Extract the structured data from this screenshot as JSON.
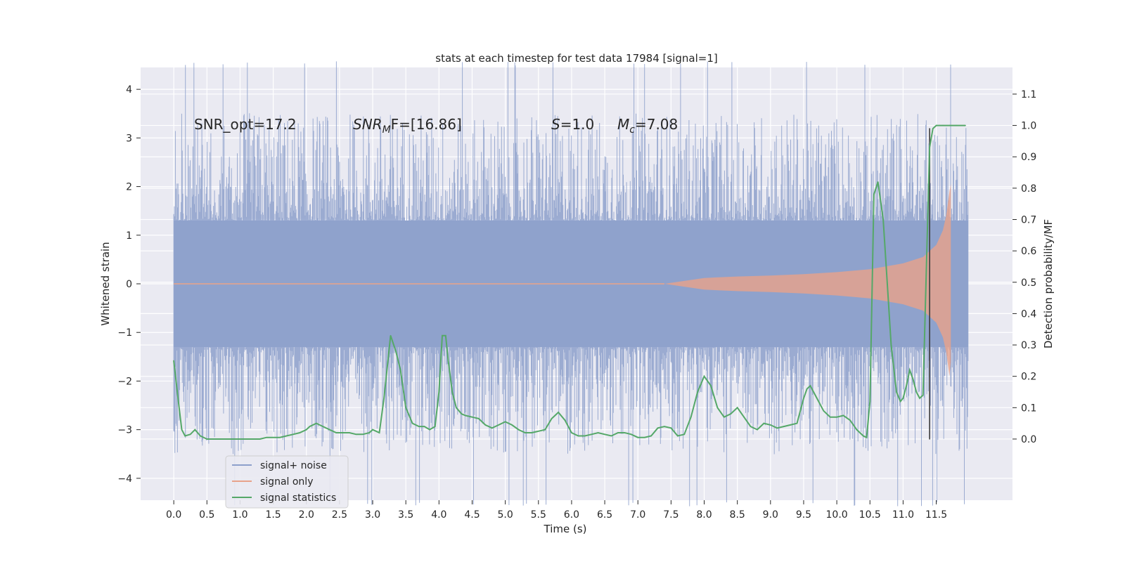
{
  "chart_data": {
    "type": "line",
    "title": "stats at each timestep for test data 17984 [signal=1]",
    "xlabel": "Time (s)",
    "ylabel_left": "Whitened strain",
    "ylabel_right": "Detection probability/MF",
    "xlim": [
      -0.5,
      12.65
    ],
    "ylim_left": [
      -4.45,
      4.45
    ],
    "ylim_right": [
      -0.195,
      1.185
    ],
    "x_ticks": [
      "0.0",
      "0.5",
      "1.0",
      "1.5",
      "2.0",
      "2.5",
      "3.0",
      "3.5",
      "4.0",
      "4.5",
      "5.0",
      "5.5",
      "6.0",
      "6.5",
      "7.0",
      "7.5",
      "8.0",
      "8.5",
      "9.0",
      "9.5",
      "10.0",
      "10.5",
      "11.0",
      "11.5"
    ],
    "y_ticks_left": [
      "4",
      "3",
      "2",
      "1",
      "0",
      "−1",
      "−2",
      "−3",
      "−4"
    ],
    "y_ticks_right": [
      "1.1",
      "1.0",
      "0.9",
      "0.8",
      "0.7",
      "0.6",
      "0.5",
      "0.4",
      "0.3",
      "0.2",
      "0.1",
      "0.0"
    ],
    "grid": true,
    "annotations": {
      "snr_opt": "SNR_opt=17.2",
      "snr_mf_sym": "SNR",
      "snr_mf_sub": "M",
      "snr_mf_rest": "F=[16.86]",
      "s_sym": "S",
      "s_rest": "=1.0",
      "mc_sym": "M",
      "mc_sub": "c",
      "mc_rest": "=7.08"
    },
    "marker_line_x": 11.4,
    "legend": {
      "location": "lower-left",
      "entries": [
        {
          "label": "signal+ noise",
          "color": "#8da0cb"
        },
        {
          "label": "signal only",
          "color": "#e8a38a"
        },
        {
          "label": "signal statistics",
          "color": "#55a868"
        }
      ]
    },
    "series": [
      {
        "name": "signal+ noise",
        "axis": "left",
        "description": "whitened strain data, approx. uniform noise amplitude ±1.3 with spikes to ±4",
        "band_core": [
          -1.3,
          1.3
        ],
        "peak_range": [
          -4.1,
          4.1
        ],
        "x_range": [
          0.0,
          11.98
        ]
      },
      {
        "name": "signal only",
        "axis": "left",
        "description": "chirp envelope",
        "x": [
          7.4,
          8.0,
          8.5,
          9.0,
          9.5,
          10.0,
          10.5,
          11.0,
          11.3,
          11.5,
          11.6,
          11.65,
          11.7,
          11.72
        ],
        "envelope": [
          0.0,
          0.12,
          0.15,
          0.17,
          0.2,
          0.24,
          0.3,
          0.42,
          0.55,
          0.8,
          1.1,
          1.4,
          1.9,
          2.05
        ]
      },
      {
        "name": "signal statistics",
        "axis": "right",
        "x": [
          0.0,
          0.07,
          0.12,
          0.17,
          0.25,
          0.32,
          0.4,
          0.5,
          0.6,
          0.7,
          0.8,
          0.9,
          1.0,
          1.1,
          1.2,
          1.3,
          1.4,
          1.5,
          1.6,
          1.7,
          1.8,
          1.9,
          2.0,
          2.05,
          2.15,
          2.25,
          2.35,
          2.45,
          2.55,
          2.65,
          2.75,
          2.85,
          2.95,
          3.0,
          3.1,
          3.17,
          3.27,
          3.35,
          3.42,
          3.5,
          3.6,
          3.7,
          3.78,
          3.86,
          3.94,
          4.0,
          4.05,
          4.1,
          4.14,
          4.2,
          4.26,
          4.34,
          4.4,
          4.5,
          4.6,
          4.7,
          4.8,
          4.9,
          5.0,
          5.1,
          5.2,
          5.3,
          5.4,
          5.5,
          5.6,
          5.7,
          5.8,
          5.9,
          6.0,
          6.1,
          6.2,
          6.3,
          6.4,
          6.5,
          6.6,
          6.7,
          6.8,
          6.9,
          7.0,
          7.1,
          7.2,
          7.3,
          7.4,
          7.5,
          7.6,
          7.7,
          7.8,
          7.9,
          8.0,
          8.1,
          8.2,
          8.3,
          8.4,
          8.5,
          8.6,
          8.7,
          8.8,
          8.9,
          9.0,
          9.1,
          9.2,
          9.3,
          9.4,
          9.5,
          9.55,
          9.6,
          9.7,
          9.8,
          9.9,
          10.0,
          10.1,
          10.2,
          10.3,
          10.4,
          10.45,
          10.5,
          10.56,
          10.62,
          10.7,
          10.76,
          10.82,
          10.9,
          10.96,
          11.0,
          11.05,
          11.1,
          11.15,
          11.2,
          11.25,
          11.3,
          11.4,
          11.45,
          11.5,
          11.55,
          11.6,
          11.7,
          11.8,
          11.94
        ],
        "y": [
          0.25,
          0.12,
          0.03,
          0.01,
          0.015,
          0.03,
          0.01,
          0.0,
          0.0,
          0.0,
          0.0,
          0.0,
          0.0,
          0.0,
          0.0,
          0.0,
          0.005,
          0.005,
          0.005,
          0.01,
          0.015,
          0.02,
          0.03,
          0.04,
          0.05,
          0.04,
          0.03,
          0.02,
          0.02,
          0.02,
          0.015,
          0.015,
          0.02,
          0.03,
          0.02,
          0.13,
          0.33,
          0.28,
          0.22,
          0.1,
          0.05,
          0.04,
          0.04,
          0.03,
          0.04,
          0.15,
          0.33,
          0.33,
          0.25,
          0.15,
          0.1,
          0.08,
          0.075,
          0.07,
          0.065,
          0.045,
          0.035,
          0.045,
          0.055,
          0.045,
          0.03,
          0.02,
          0.02,
          0.025,
          0.03,
          0.065,
          0.085,
          0.06,
          0.02,
          0.01,
          0.01,
          0.015,
          0.02,
          0.015,
          0.01,
          0.02,
          0.02,
          0.015,
          0.005,
          0.005,
          0.01,
          0.035,
          0.04,
          0.035,
          0.01,
          0.015,
          0.07,
          0.15,
          0.2,
          0.17,
          0.1,
          0.07,
          0.08,
          0.1,
          0.07,
          0.04,
          0.03,
          0.05,
          0.045,
          0.035,
          0.04,
          0.045,
          0.05,
          0.13,
          0.16,
          0.17,
          0.13,
          0.09,
          0.07,
          0.07,
          0.075,
          0.06,
          0.03,
          0.01,
          0.005,
          0.12,
          0.78,
          0.82,
          0.7,
          0.5,
          0.3,
          0.15,
          0.12,
          0.13,
          0.17,
          0.22,
          0.19,
          0.15,
          0.13,
          0.14,
          0.93,
          0.99,
          1.0,
          1.0,
          1.0,
          1.0,
          1.0,
          1.0
        ]
      }
    ]
  }
}
